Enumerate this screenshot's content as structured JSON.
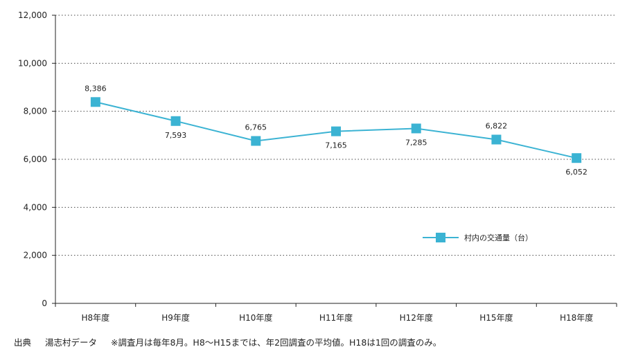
{
  "chart_data": {
    "type": "line",
    "categories": [
      "H8年度",
      "H9年度",
      "H10年度",
      "H11年度",
      "H12年度",
      "H15年度",
      "H18年度"
    ],
    "series": [
      {
        "name": "村内の交通量（台）",
        "values": [
          8386,
          7593,
          6765,
          7165,
          7285,
          6822,
          6052
        ],
        "value_labels": [
          "8,386",
          "7,593",
          "6,765",
          "7,165",
          "7,285",
          "6,822",
          "6,052"
        ],
        "color": "#3bb3d3"
      }
    ],
    "ylim": [
      0,
      12000
    ],
    "yticks": [
      0,
      2000,
      4000,
      6000,
      8000,
      10000,
      12000
    ],
    "ytick_labels": [
      "0",
      "2,000",
      "4,000",
      "6,000",
      "8,000",
      "10,000",
      "12,000"
    ],
    "grid": "horizontal-dotted",
    "legend_position": "center-right"
  },
  "footer": {
    "source_label": "出典",
    "source_name": "湯志村データ",
    "note": "※調査月は毎年8月。H8～H15までは、年2回調査の平均値。H18は1回の調査のみ。"
  }
}
